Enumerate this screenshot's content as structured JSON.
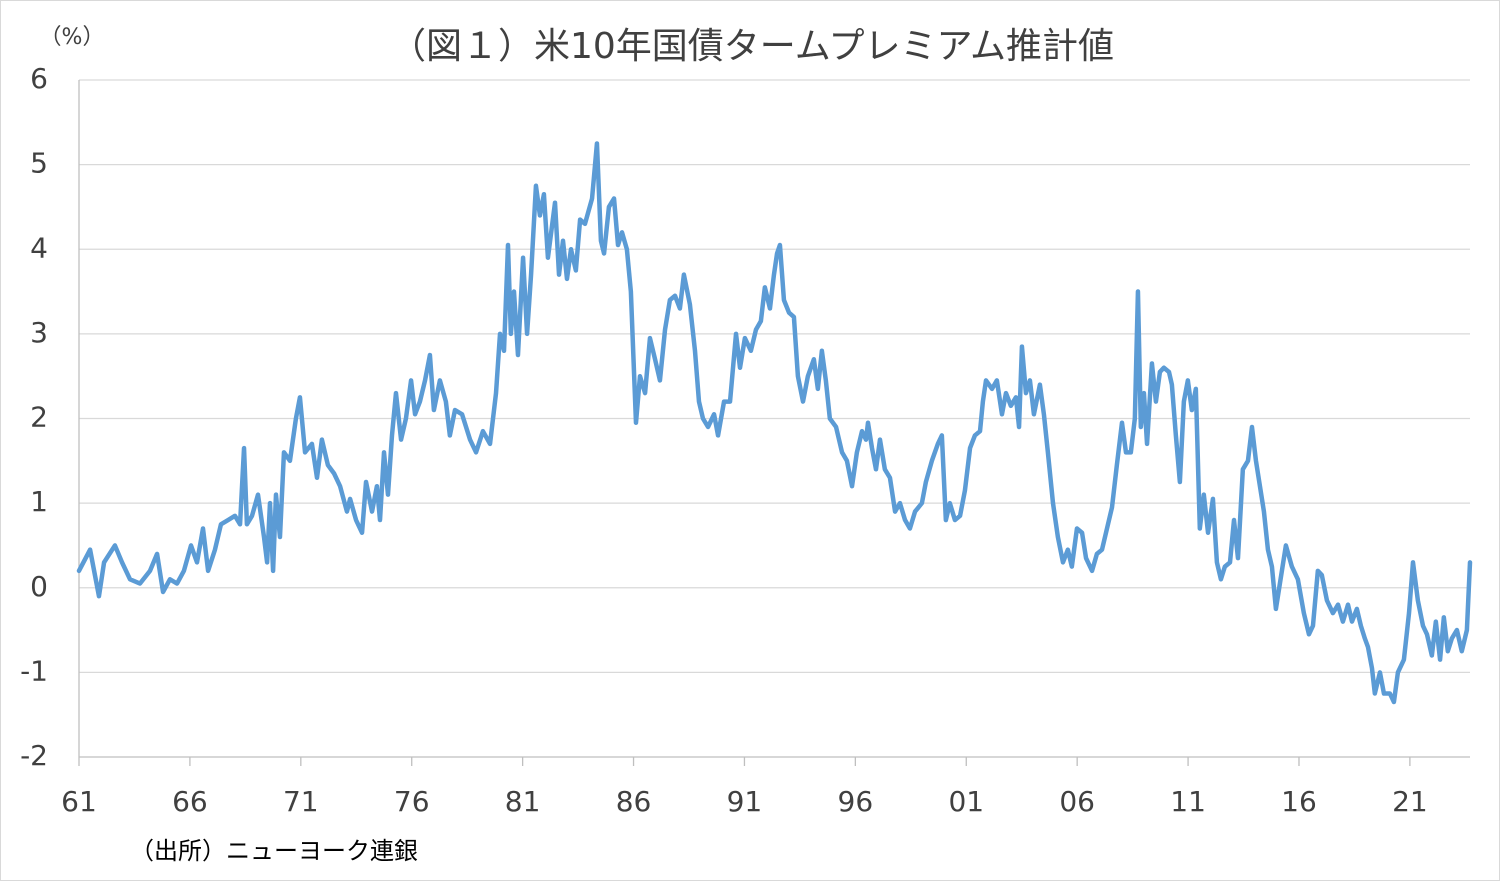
{
  "chart_data": {
    "type": "line",
    "title": "（図１）米10年国債タームプレミアム推計値",
    "y_unit": "（%）",
    "source": "（出所）ニューヨーク連銀",
    "xlim": [
      1961,
      2023.71
    ],
    "ylim": [
      -2,
      6
    ],
    "yticks": [
      -2,
      -1,
      0,
      1,
      2,
      3,
      4,
      5,
      6
    ],
    "xticks": [
      {
        "value": 1961,
        "label": "61"
      },
      {
        "value": 1966,
        "label": "66"
      },
      {
        "value": 1971,
        "label": "71"
      },
      {
        "value": 1976,
        "label": "76"
      },
      {
        "value": 1981,
        "label": "81"
      },
      {
        "value": 1986,
        "label": "86"
      },
      {
        "value": 1991,
        "label": "91"
      },
      {
        "value": 1996,
        "label": "96"
      },
      {
        "value": 2001,
        "label": "01"
      },
      {
        "value": 2006,
        "label": "06"
      },
      {
        "value": 2011,
        "label": "11"
      },
      {
        "value": 2016,
        "label": "16"
      },
      {
        "value": 2021,
        "label": "21"
      }
    ],
    "grid": true,
    "x": [
      1961.0,
      1961.5,
      1961.9,
      1962.13,
      1962.62,
      1962.94,
      1963.3,
      1963.75,
      1964.2,
      1964.52,
      1964.79,
      1965.1,
      1965.42,
      1965.73,
      1966.05,
      1966.32,
      1966.59,
      1966.82,
      1967.13,
      1967.4,
      1967.72,
      1968.03,
      1968.26,
      1968.44,
      1968.57,
      1968.8,
      1969.07,
      1969.34,
      1969.48,
      1969.61,
      1969.75,
      1969.88,
      1970.06,
      1970.24,
      1970.51,
      1970.78,
      1970.96,
      1971.19,
      1971.5,
      1971.73,
      1971.95,
      1972.22,
      1972.5,
      1972.77,
      1973.08,
      1973.22,
      1973.49,
      1973.76,
      1973.94,
      1974.21,
      1974.43,
      1974.57,
      1974.75,
      1974.93,
      1975.11,
      1975.29,
      1975.52,
      1975.74,
      1975.97,
      1976.15,
      1976.37,
      1976.6,
      1976.82,
      1977.0,
      1977.27,
      1977.54,
      1977.72,
      1977.95,
      1978.27,
      1978.63,
      1978.9,
      1979.21,
      1979.53,
      1979.8,
      1979.98,
      1980.16,
      1980.34,
      1980.47,
      1980.61,
      1980.79,
      1981.02,
      1981.2,
      1981.38,
      1981.6,
      1981.78,
      1981.96,
      1982.14,
      1982.46,
      1982.64,
      1982.82,
      1983.0,
      1983.18,
      1983.4,
      1983.59,
      1983.81,
      1984.13,
      1984.35,
      1984.53,
      1984.67,
      1984.89,
      1985.12,
      1985.3,
      1985.48,
      1985.7,
      1985.88,
      1986.11,
      1986.29,
      1986.52,
      1986.74,
      1986.97,
      1987.19,
      1987.42,
      1987.64,
      1987.87,
      1988.09,
      1988.27,
      1988.54,
      1988.77,
      1988.95,
      1989.13,
      1989.36,
      1989.63,
      1989.81,
      1990.08,
      1990.35,
      1990.62,
      1990.8,
      1991.02,
      1991.29,
      1991.52,
      1991.74,
      1991.92,
      1992.15,
      1992.33,
      1992.47,
      1992.6,
      1992.78,
      1993.01,
      1993.23,
      1993.41,
      1993.64,
      1993.86,
      1994.13,
      1994.31,
      1994.49,
      1994.67,
      1994.85,
      1995.13,
      1995.4,
      1995.62,
      1995.85,
      1996.07,
      1996.3,
      1996.48,
      1996.57,
      1996.75,
      1996.93,
      1997.11,
      1997.33,
      1997.56,
      1997.79,
      1998.01,
      1998.24,
      1998.46,
      1998.69,
      1999.0,
      1999.18,
      1999.45,
      1999.72,
      1999.9,
      2000.08,
      2000.26,
      2000.49,
      2000.72,
      2000.94,
      2001.17,
      2001.39,
      2001.62,
      2001.75,
      2001.89,
      2002.16,
      2002.38,
      2002.61,
      2002.79,
      2003.01,
      2003.24,
      2003.38,
      2003.51,
      2003.69,
      2003.87,
      2004.05,
      2004.32,
      2004.5,
      2004.68,
      2004.91,
      2005.13,
      2005.36,
      2005.58,
      2005.76,
      2005.99,
      2006.22,
      2006.4,
      2006.67,
      2006.89,
      2007.12,
      2007.39,
      2007.57,
      2007.79,
      2008.02,
      2008.2,
      2008.42,
      2008.6,
      2008.74,
      2008.87,
      2009.01,
      2009.15,
      2009.37,
      2009.55,
      2009.73,
      2009.91,
      2010.14,
      2010.27,
      2010.45,
      2010.63,
      2010.81,
      2010.99,
      2011.17,
      2011.35,
      2011.53,
      2011.71,
      2011.9,
      2012.12,
      2012.3,
      2012.48,
      2012.66,
      2012.89,
      2013.07,
      2013.25,
      2013.47,
      2013.7,
      2013.88,
      2014.06,
      2014.24,
      2014.42,
      2014.6,
      2014.78,
      2014.96,
      2015.14,
      2015.41,
      2015.68,
      2015.95,
      2016.22,
      2016.45,
      2016.63,
      2016.85,
      2017.03,
      2017.26,
      2017.53,
      2017.76,
      2017.98,
      2018.21,
      2018.39,
      2018.61,
      2018.79,
      2018.97,
      2019.11,
      2019.29,
      2019.42,
      2019.65,
      2019.83,
      2020.1,
      2020.28,
      2020.46,
      2020.73,
      2020.96,
      2021.14,
      2021.36,
      2021.59,
      2021.77,
      2021.99,
      2022.17,
      2022.36,
      2022.53,
      2022.71,
      2022.89,
      2023.12,
      2023.34,
      2023.57,
      2023.71
    ],
    "series": [
      {
        "name": "タームプレミアム",
        "color": "#5b9bd5",
        "values": [
          0.2,
          0.45,
          -0.1,
          0.3,
          0.5,
          0.3,
          0.1,
          0.05,
          0.2,
          0.4,
          -0.05,
          0.1,
          0.05,
          0.2,
          0.5,
          0.3,
          0.7,
          0.2,
          0.45,
          0.75,
          0.8,
          0.85,
          0.75,
          1.65,
          0.75,
          0.85,
          1.1,
          0.6,
          0.3,
          1.0,
          0.2,
          1.1,
          0.6,
          1.6,
          1.5,
          2.0,
          2.25,
          1.6,
          1.7,
          1.3,
          1.75,
          1.45,
          1.35,
          1.2,
          0.9,
          1.05,
          0.8,
          0.65,
          1.25,
          0.9,
          1.2,
          0.8,
          1.6,
          1.1,
          1.8,
          2.3,
          1.75,
          2.0,
          2.45,
          2.05,
          2.2,
          2.45,
          2.75,
          2.1,
          2.45,
          2.2,
          1.8,
          2.1,
          2.05,
          1.75,
          1.6,
          1.85,
          1.7,
          2.3,
          3.0,
          2.8,
          4.05,
          3.0,
          3.5,
          2.75,
          3.9,
          3.0,
          3.7,
          4.75,
          4.4,
          4.65,
          3.9,
          4.55,
          3.7,
          4.1,
          3.65,
          4.0,
          3.75,
          4.35,
          4.3,
          4.6,
          5.25,
          4.1,
          3.95,
          4.5,
          4.6,
          4.05,
          4.2,
          4.0,
          3.5,
          1.95,
          2.5,
          2.3,
          2.95,
          2.7,
          2.45,
          3.05,
          3.4,
          3.45,
          3.3,
          3.7,
          3.35,
          2.8,
          2.2,
          2.0,
          1.9,
          2.05,
          1.8,
          2.2,
          2.2,
          3.0,
          2.6,
          2.95,
          2.8,
          3.05,
          3.15,
          3.55,
          3.3,
          3.7,
          3.95,
          4.05,
          3.4,
          3.25,
          3.2,
          2.5,
          2.2,
          2.5,
          2.7,
          2.35,
          2.8,
          2.45,
          2.0,
          1.9,
          1.6,
          1.5,
          1.2,
          1.6,
          1.85,
          1.75,
          1.95,
          1.65,
          1.4,
          1.75,
          1.4,
          1.3,
          0.9,
          1.0,
          0.8,
          0.7,
          0.9,
          1.0,
          1.25,
          1.5,
          1.7,
          1.8,
          0.8,
          1.0,
          0.8,
          0.85,
          1.15,
          1.65,
          1.8,
          1.85,
          2.2,
          2.45,
          2.35,
          2.45,
          2.05,
          2.3,
          2.15,
          2.25,
          1.9,
          2.85,
          2.3,
          2.45,
          2.05,
          2.4,
          2.05,
          1.6,
          1.0,
          0.6,
          0.3,
          0.45,
          0.25,
          0.7,
          0.65,
          0.35,
          0.2,
          0.4,
          0.45,
          0.75,
          0.95,
          1.45,
          1.95,
          1.6,
          1.6,
          2.0,
          3.5,
          1.9,
          2.3,
          1.7,
          2.65,
          2.2,
          2.55,
          2.6,
          2.55,
          2.4,
          1.8,
          1.25,
          2.2,
          2.45,
          2.1,
          2.35,
          0.7,
          1.1,
          0.65,
          1.05,
          0.3,
          0.1,
          0.25,
          0.3,
          0.8,
          0.35,
          1.4,
          1.5,
          1.9,
          1.5,
          1.2,
          0.9,
          0.45,
          0.25,
          -0.25,
          0.05,
          0.5,
          0.25,
          0.1,
          -0.3,
          -0.55,
          -0.45,
          0.2,
          0.15,
          -0.15,
          -0.3,
          -0.2,
          -0.4,
          -0.2,
          -0.4,
          -0.25,
          -0.45,
          -0.6,
          -0.7,
          -0.95,
          -1.25,
          -1.0,
          -1.25,
          -1.25,
          -1.35,
          -1.0,
          -0.85,
          -0.3,
          0.3,
          -0.15,
          -0.45,
          -0.55,
          -0.8,
          -0.4,
          -0.85,
          -0.35,
          -0.75,
          -0.6,
          -0.5,
          -0.75,
          -0.5,
          0.3
        ]
      }
    ]
  }
}
